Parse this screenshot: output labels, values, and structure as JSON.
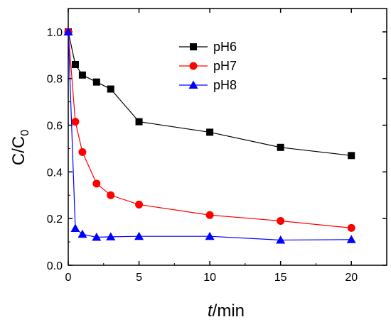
{
  "chart_data": {
    "type": "line",
    "xlabel_italic": "t",
    "xlabel_rest": "/min",
    "ylabel_main": "C/C",
    "ylabel_sub": "0",
    "xlim": [
      0,
      22.5
    ],
    "ylim": [
      0,
      1.1
    ],
    "x_ticks": [
      0,
      5,
      10,
      15,
      20
    ],
    "x_tick_labels": [
      "0",
      "5",
      "10",
      "15",
      "20"
    ],
    "y_ticks": [
      0,
      0.2,
      0.4,
      0.6,
      0.8,
      1.0
    ],
    "y_tick_labels": [
      "0.0",
      "0.2",
      "0.4",
      "0.6",
      "0.8",
      "1.0"
    ],
    "grid": false,
    "legend_position": "top-right",
    "series": [
      {
        "name": "pH6",
        "color": "#000000",
        "marker": "square",
        "x": [
          0,
          0.5,
          1,
          2,
          3,
          5,
          10,
          15,
          20
        ],
        "y": [
          1.0,
          0.86,
          0.815,
          0.785,
          0.755,
          0.615,
          0.57,
          0.505,
          0.47
        ]
      },
      {
        "name": "pH7",
        "color": "#ff0000",
        "marker": "circle",
        "x": [
          0,
          0.5,
          1,
          2,
          3,
          5,
          10,
          15,
          20
        ],
        "y": [
          1.0,
          0.615,
          0.485,
          0.35,
          0.3,
          0.26,
          0.215,
          0.19,
          0.16
        ]
      },
      {
        "name": "pH8",
        "color": "#0000ff",
        "marker": "triangle",
        "x": [
          0,
          0.5,
          1,
          2,
          3,
          5,
          10,
          15,
          20
        ],
        "y": [
          1.0,
          0.158,
          0.133,
          0.12,
          0.122,
          0.124,
          0.124,
          0.108,
          0.11
        ]
      }
    ]
  }
}
